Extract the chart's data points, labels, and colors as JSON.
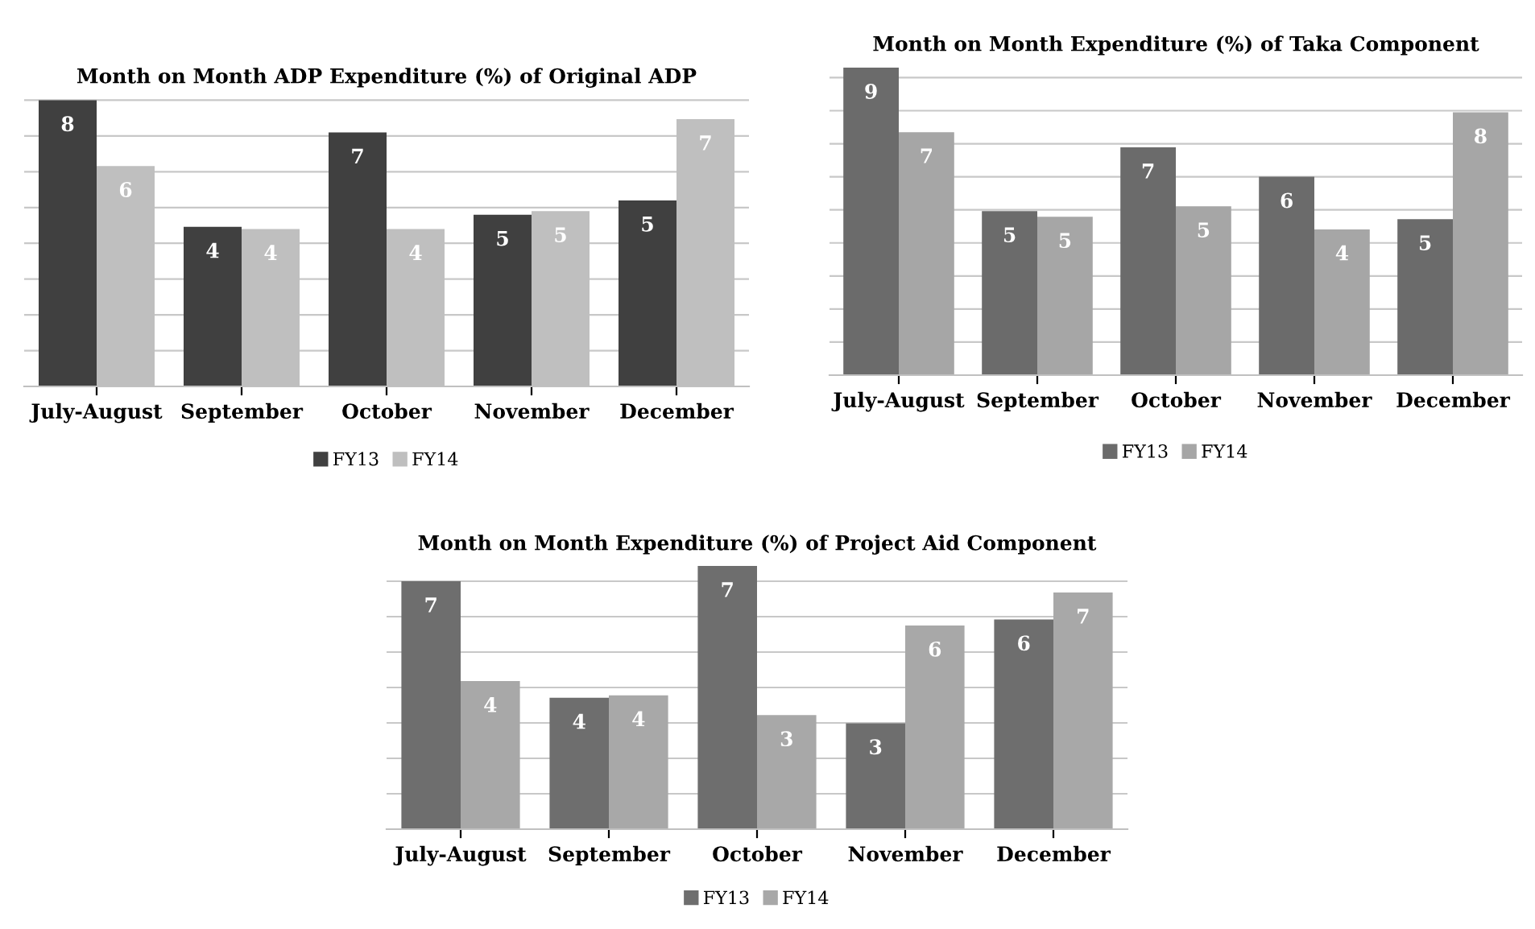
{
  "chart_data": [
    {
      "type": "bar",
      "title": "Month on Month ADP Expenditure (%) of Original ADP",
      "categories": [
        "July-August",
        "September",
        "October",
        "November",
        "December"
      ],
      "series": [
        {
          "name": "FY13",
          "color": "#404040",
          "values": [
            8.0,
            4.46,
            7.1,
            4.8,
            5.2
          ],
          "value_labels": [
            "8",
            "4",
            "7",
            "5",
            "5"
          ]
        },
        {
          "name": "FY14",
          "color": "#bfbfbf",
          "values": [
            6.16,
            4.4,
            4.4,
            4.9,
            7.47
          ],
          "value_labels": [
            "6",
            "4",
            "4",
            "5",
            "7"
          ]
        }
      ],
      "ylim": [
        0,
        8.1
      ],
      "yticks": [
        {
          "value": 0,
          "label": null
        },
        {
          "value": 1,
          "label": null
        },
        {
          "value": 2,
          "label": null
        },
        {
          "value": 3,
          "label": null
        },
        {
          "value": 4,
          "label": null
        },
        {
          "value": 5,
          "label": null
        },
        {
          "value": 6,
          "label": null
        },
        {
          "value": 7,
          "label": null
        },
        {
          "value": 8,
          "label": null
        }
      ],
      "grid": "y",
      "legend": "bottom",
      "tick_labels": "x"
    },
    {
      "type": "bar",
      "title": "Month on Month Expenditure (%) of Taka Component",
      "categories": [
        "July-August",
        "September",
        "October",
        "November",
        "December"
      ],
      "series": [
        {
          "name": "FY13",
          "color": "#6b6b6b",
          "values": [
            9.3,
            4.96,
            6.89,
            6.0,
            4.72
          ],
          "value_labels": [
            "9",
            "5",
            "7",
            "6",
            "5"
          ]
        },
        {
          "name": "FY14",
          "color": "#a6a6a6",
          "values": [
            7.35,
            4.79,
            5.11,
            4.41,
            7.95
          ],
          "value_labels": [
            "7",
            "5",
            "5",
            "4",
            "8"
          ]
        }
      ],
      "ylim": [
        0,
        9.4
      ],
      "yticks": [
        {
          "value": 0,
          "label": null
        },
        {
          "value": 1,
          "label": null
        },
        {
          "value": 2,
          "label": null
        },
        {
          "value": 3,
          "label": null
        },
        {
          "value": 4,
          "label": null
        },
        {
          "value": 5,
          "label": null
        },
        {
          "value": 6,
          "label": null
        },
        {
          "value": 7,
          "label": null
        },
        {
          "value": 8,
          "label": null
        },
        {
          "value": 9,
          "label": null
        }
      ],
      "grid": "y",
      "legend": "bottom",
      "tick_labels": "x"
    },
    {
      "type": "bar",
      "title": "Month on Month Expenditure (%) of Project Aid Component",
      "categories": [
        "July-August",
        "September",
        "October",
        "November",
        "December"
      ],
      "series": [
        {
          "name": "FY13",
          "color": "#6e6e6e",
          "values": [
            7.0,
            3.71,
            7.43,
            2.99,
            5.92
          ],
          "value_labels": [
            "7",
            "4",
            "7",
            "3",
            "6"
          ]
        },
        {
          "name": "FY14",
          "color": "#a8a8a8",
          "values": [
            4.18,
            3.78,
            3.22,
            5.75,
            6.68
          ],
          "value_labels": [
            "4",
            "4",
            "3",
            "6",
            "7"
          ]
        }
      ],
      "ylim": [
        0,
        7.5
      ],
      "yticks": [
        {
          "value": 0,
          "label": null
        },
        {
          "value": 1,
          "label": null
        },
        {
          "value": 2,
          "label": null
        },
        {
          "value": 3,
          "label": null
        },
        {
          "value": 4,
          "label": null
        },
        {
          "value": 5,
          "label": null
        },
        {
          "value": 6,
          "label": null
        },
        {
          "value": 7,
          "label": null
        }
      ],
      "grid": "y",
      "legend": "bottom",
      "tick_labels": "x"
    }
  ]
}
